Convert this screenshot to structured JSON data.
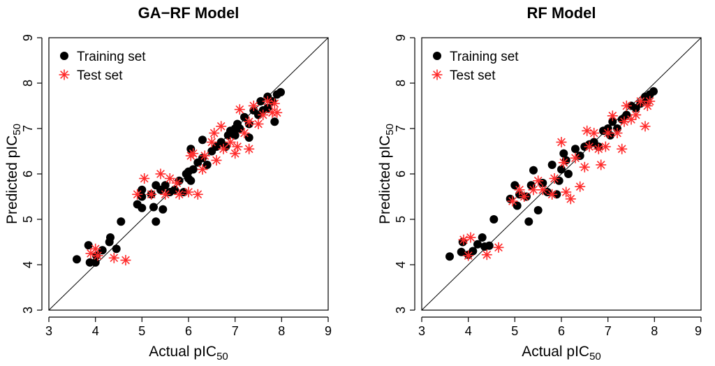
{
  "chart_data": [
    {
      "type": "scatter",
      "title": "GA−RF Model",
      "xlabel": "Actual pIC",
      "xlabel_sub": "50",
      "ylabel": "Predicted pIC",
      "ylabel_sub": "50",
      "xlim": [
        3,
        9
      ],
      "ylim": [
        3,
        9
      ],
      "xticks": [
        3,
        4,
        5,
        6,
        7,
        8,
        9
      ],
      "yticks": [
        3,
        4,
        5,
        6,
        7,
        8,
        9
      ],
      "reference_line": "y = x",
      "legend_position": "top-left",
      "series": [
        {
          "name": "Training set",
          "marker": "circle",
          "color": "#000000",
          "points": [
            [
              3.6,
              4.12
            ],
            [
              3.85,
              4.43
            ],
            [
              3.88,
              4.05
            ],
            [
              4.0,
              4.05
            ],
            [
              4.02,
              4.2
            ],
            [
              4.15,
              4.32
            ],
            [
              4.3,
              4.5
            ],
            [
              4.32,
              4.6
            ],
            [
              4.45,
              4.35
            ],
            [
              4.55,
              4.95
            ],
            [
              4.9,
              5.33
            ],
            [
              5.0,
              5.25
            ],
            [
              5.0,
              5.5
            ],
            [
              5.0,
              5.65
            ],
            [
              5.2,
              5.55
            ],
            [
              5.25,
              5.27
            ],
            [
              5.3,
              4.95
            ],
            [
              5.3,
              5.75
            ],
            [
              5.4,
              5.65
            ],
            [
              5.45,
              5.22
            ],
            [
              5.5,
              5.75
            ],
            [
              5.6,
              5.6
            ],
            [
              5.7,
              5.65
            ],
            [
              5.8,
              5.85
            ],
            [
              5.9,
              5.6
            ],
            [
              5.95,
              6.0
            ],
            [
              6.0,
              5.9
            ],
            [
              6.0,
              6.05
            ],
            [
              6.05,
              6.55
            ],
            [
              6.05,
              5.85
            ],
            [
              6.1,
              6.1
            ],
            [
              6.2,
              6.25
            ],
            [
              6.3,
              6.35
            ],
            [
              6.3,
              6.75
            ],
            [
              6.4,
              6.2
            ],
            [
              6.5,
              6.5
            ],
            [
              6.6,
              6.6
            ],
            [
              6.7,
              6.7
            ],
            [
              6.8,
              6.6
            ],
            [
              6.85,
              6.85
            ],
            [
              6.9,
              6.95
            ],
            [
              7.0,
              7.0
            ],
            [
              7.0,
              6.85
            ],
            [
              7.05,
              7.1
            ],
            [
              7.1,
              7.0
            ],
            [
              7.2,
              7.25
            ],
            [
              7.3,
              6.8
            ],
            [
              7.3,
              7.1
            ],
            [
              7.4,
              7.4
            ],
            [
              7.5,
              7.3
            ],
            [
              7.55,
              7.6
            ],
            [
              7.6,
              7.4
            ],
            [
              7.7,
              7.45
            ],
            [
              7.7,
              7.7
            ],
            [
              7.8,
              7.6
            ],
            [
              7.85,
              7.15
            ],
            [
              7.9,
              7.75
            ],
            [
              7.98,
              7.8
            ]
          ]
        },
        {
          "name": "Test set",
          "marker": "asterisk",
          "color": "#ff2a2a",
          "points": [
            [
              3.9,
              4.25
            ],
            [
              4.0,
              4.35
            ],
            [
              4.05,
              4.2
            ],
            [
              4.4,
              4.15
            ],
            [
              4.65,
              4.1
            ],
            [
              4.9,
              5.55
            ],
            [
              5.05,
              5.9
            ],
            [
              5.2,
              5.55
            ],
            [
              5.4,
              6.0
            ],
            [
              5.5,
              5.55
            ],
            [
              5.6,
              5.9
            ],
            [
              5.75,
              5.8
            ],
            [
              5.8,
              5.55
            ],
            [
              6.0,
              5.6
            ],
            [
              6.05,
              6.4
            ],
            [
              6.1,
              6.45
            ],
            [
              6.2,
              5.55
            ],
            [
              6.3,
              6.1
            ],
            [
              6.35,
              6.4
            ],
            [
              6.5,
              6.7
            ],
            [
              6.55,
              6.9
            ],
            [
              6.6,
              6.3
            ],
            [
              6.7,
              7.05
            ],
            [
              6.75,
              6.55
            ],
            [
              6.9,
              6.7
            ],
            [
              7.0,
              6.45
            ],
            [
              7.05,
              6.6
            ],
            [
              7.1,
              7.42
            ],
            [
              7.2,
              6.9
            ],
            [
              7.3,
              6.55
            ],
            [
              7.3,
              7.15
            ],
            [
              7.4,
              7.5
            ],
            [
              7.5,
              7.1
            ],
            [
              7.6,
              7.3
            ],
            [
              7.7,
              7.6
            ],
            [
              7.8,
              7.35
            ],
            [
              7.85,
              7.55
            ],
            [
              7.9,
              7.35
            ]
          ]
        }
      ]
    },
    {
      "type": "scatter",
      "title": "RF Model",
      "xlabel": "Actual pIC",
      "xlabel_sub": "50",
      "ylabel": "Predicted pIC",
      "ylabel_sub": "50",
      "xlim": [
        3,
        9
      ],
      "ylim": [
        3,
        9
      ],
      "xticks": [
        3,
        4,
        5,
        6,
        7,
        8,
        9
      ],
      "yticks": [
        3,
        4,
        5,
        6,
        7,
        8,
        9
      ],
      "reference_line": "y = x",
      "legend_position": "top-left",
      "series": [
        {
          "name": "Training set",
          "marker": "circle",
          "color": "#000000",
          "points": [
            [
              3.6,
              4.18
            ],
            [
              3.85,
              4.28
            ],
            [
              3.88,
              4.5
            ],
            [
              4.0,
              4.22
            ],
            [
              4.1,
              4.3
            ],
            [
              4.2,
              4.45
            ],
            [
              4.3,
              4.6
            ],
            [
              4.35,
              4.4
            ],
            [
              4.45,
              4.42
            ],
            [
              4.55,
              5.0
            ],
            [
              4.9,
              5.45
            ],
            [
              5.0,
              5.75
            ],
            [
              5.05,
              5.3
            ],
            [
              5.1,
              5.55
            ],
            [
              5.25,
              5.5
            ],
            [
              5.3,
              4.95
            ],
            [
              5.35,
              5.75
            ],
            [
              5.4,
              6.08
            ],
            [
              5.5,
              5.2
            ],
            [
              5.6,
              5.8
            ],
            [
              5.7,
              5.6
            ],
            [
              5.8,
              6.2
            ],
            [
              5.9,
              5.55
            ],
            [
              5.95,
              5.85
            ],
            [
              6.0,
              6.1
            ],
            [
              6.05,
              6.45
            ],
            [
              6.1,
              6.3
            ],
            [
              6.15,
              6.0
            ],
            [
              6.3,
              6.55
            ],
            [
              6.4,
              6.4
            ],
            [
              6.5,
              6.6
            ],
            [
              6.6,
              6.65
            ],
            [
              6.7,
              6.7
            ],
            [
              6.8,
              6.6
            ],
            [
              6.9,
              6.95
            ],
            [
              7.0,
              7.0
            ],
            [
              7.05,
              6.85
            ],
            [
              7.1,
              7.15
            ],
            [
              7.2,
              7.0
            ],
            [
              7.3,
              7.2
            ],
            [
              7.4,
              7.3
            ],
            [
              7.5,
              7.5
            ],
            [
              7.6,
              7.45
            ],
            [
              7.7,
              7.55
            ],
            [
              7.8,
              7.7
            ],
            [
              7.85,
              7.6
            ],
            [
              7.9,
              7.75
            ],
            [
              7.98,
              7.82
            ]
          ]
        },
        {
          "name": "Test set",
          "marker": "asterisk",
          "color": "#ff2a2a",
          "points": [
            [
              3.9,
              4.55
            ],
            [
              4.0,
              4.2
            ],
            [
              4.05,
              4.6
            ],
            [
              4.4,
              4.22
            ],
            [
              4.65,
              4.38
            ],
            [
              4.95,
              5.4
            ],
            [
              5.1,
              5.65
            ],
            [
              5.2,
              5.5
            ],
            [
              5.4,
              5.65
            ],
            [
              5.5,
              5.85
            ],
            [
              5.6,
              5.65
            ],
            [
              5.8,
              5.55
            ],
            [
              5.85,
              5.9
            ],
            [
              6.0,
              6.7
            ],
            [
              6.05,
              6.25
            ],
            [
              6.1,
              5.6
            ],
            [
              6.2,
              5.45
            ],
            [
              6.3,
              6.35
            ],
            [
              6.4,
              5.72
            ],
            [
              6.5,
              6.15
            ],
            [
              6.55,
              6.95
            ],
            [
              6.6,
              6.6
            ],
            [
              6.7,
              6.9
            ],
            [
              6.8,
              6.55
            ],
            [
              6.85,
              6.2
            ],
            [
              6.95,
              6.6
            ],
            [
              7.0,
              6.9
            ],
            [
              7.1,
              7.28
            ],
            [
              7.2,
              6.9
            ],
            [
              7.3,
              6.55
            ],
            [
              7.35,
              7.15
            ],
            [
              7.4,
              7.5
            ],
            [
              7.5,
              7.2
            ],
            [
              7.6,
              7.3
            ],
            [
              7.7,
              7.6
            ],
            [
              7.8,
              7.05
            ],
            [
              7.85,
              7.5
            ],
            [
              7.9,
              7.6
            ]
          ]
        }
      ]
    }
  ]
}
